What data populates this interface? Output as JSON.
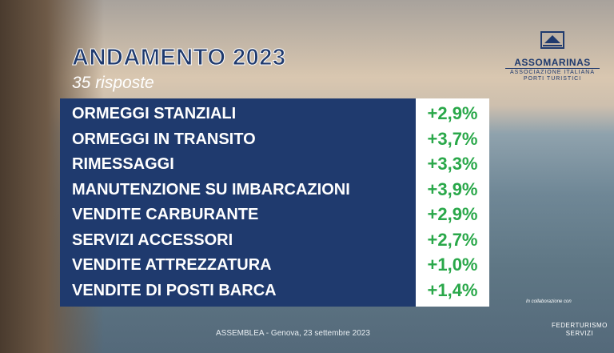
{
  "header": {
    "title": "ANDAMENTO 2023",
    "subtitle": "35 risposte"
  },
  "logo": {
    "name": "ASSOMARINAS",
    "tagline_1": "ASSOCIAZIONE ITALIANA",
    "tagline_2": "PORTI TURISTICI"
  },
  "table": {
    "rows": [
      [
        "ORMEGGI STANZIALI",
        "+2,9%"
      ],
      [
        "ORMEGGI IN TRANSITO",
        "+3,7%"
      ],
      [
        "RIMESSAGGI",
        "+3,3%"
      ],
      [
        "MANUTENZIONE SU IMBARCAZIONI",
        "+3,9%"
      ],
      [
        "VENDITE CARBURANTE",
        "+2,9%"
      ],
      [
        "SERVIZI ACCESSORI",
        "+2,7%"
      ],
      [
        "VENDITE ATTREZZATURA",
        "+1,0%"
      ],
      [
        "VENDITE DI POSTI BARCA",
        "+1,4%"
      ]
    ]
  },
  "footer": {
    "text": "ASSEMBLEA - Genova, 23 settembre 2023",
    "collab": "In collaborazione con",
    "partner_1": "FEDERTURISMO",
    "partner_2": "SERVIZI"
  }
}
